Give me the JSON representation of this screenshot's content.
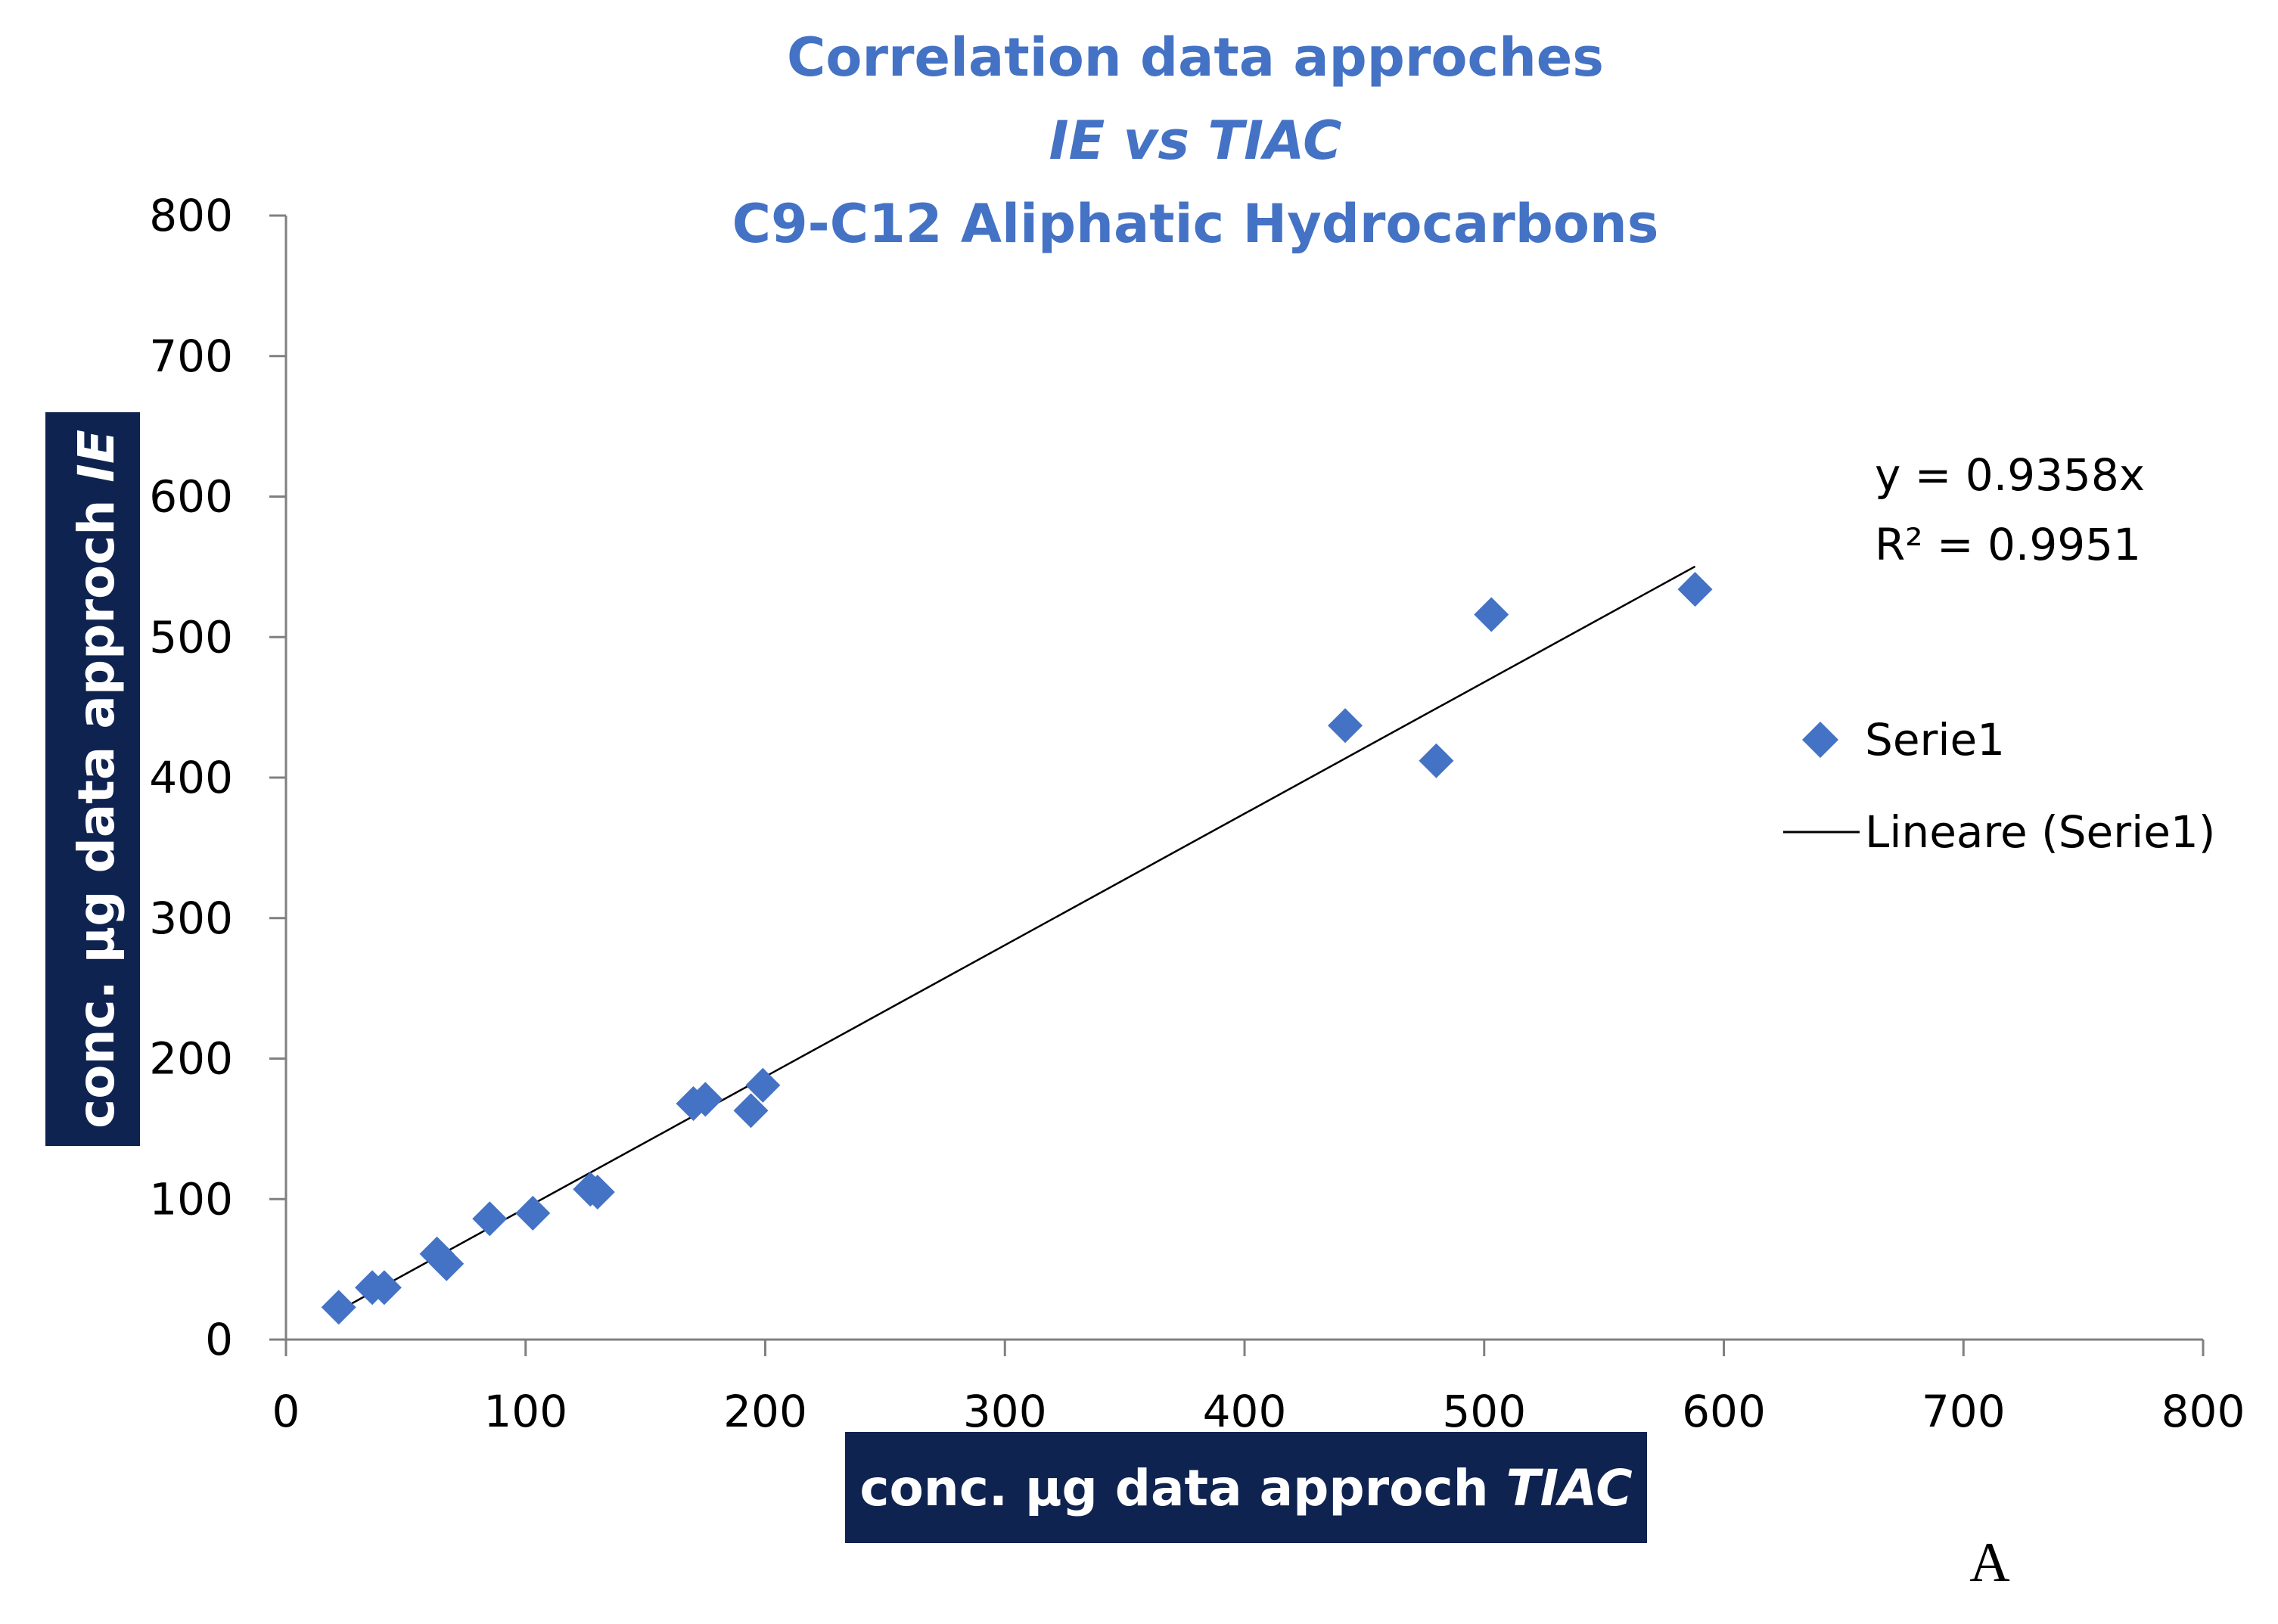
{
  "chart_data": {
    "type": "scatter",
    "title": [
      "Correlation data approches",
      "IE vs TIAC",
      "C9-C12 Aliphatic Hydrocarbons"
    ],
    "xlabel": {
      "prefix": "conc. µg data approch ",
      "emph": "TIAC"
    },
    "ylabel": {
      "prefix": "conc. µg data approch  ",
      "emph": "IE"
    },
    "xlim": [
      0,
      800
    ],
    "ylim": [
      0,
      800
    ],
    "x_ticks": [
      0,
      100,
      200,
      300,
      400,
      500,
      600,
      700,
      800
    ],
    "y_ticks": [
      0,
      100,
      200,
      300,
      400,
      500,
      600,
      700,
      800
    ],
    "grid": false,
    "series": [
      {
        "name": "Serie1",
        "marker": "diamond",
        "color": "#4472C4",
        "points": [
          [
            22,
            23
          ],
          [
            36,
            37
          ],
          [
            41,
            37
          ],
          [
            63,
            61
          ],
          [
            67,
            54
          ],
          [
            85,
            86
          ],
          [
            103,
            90
          ],
          [
            127,
            107
          ],
          [
            130,
            105
          ],
          [
            170,
            168
          ],
          [
            175,
            171
          ],
          [
            194,
            163
          ],
          [
            199,
            181
          ],
          [
            442,
            437
          ],
          [
            480,
            412
          ],
          [
            503,
            516
          ],
          [
            588,
            534
          ]
        ]
      }
    ],
    "trendline": {
      "name": "Lineare (Serie1)",
      "slope": 0.9358,
      "x_range": [
        22,
        588
      ],
      "color": "#000000",
      "equation": "y = 0.9358x",
      "r2_label": "R² = 0.9951"
    },
    "legend": {
      "position": "right",
      "entries": [
        "Serie1",
        "Lineare (Serie1)"
      ]
    },
    "panel_label": "A"
  }
}
